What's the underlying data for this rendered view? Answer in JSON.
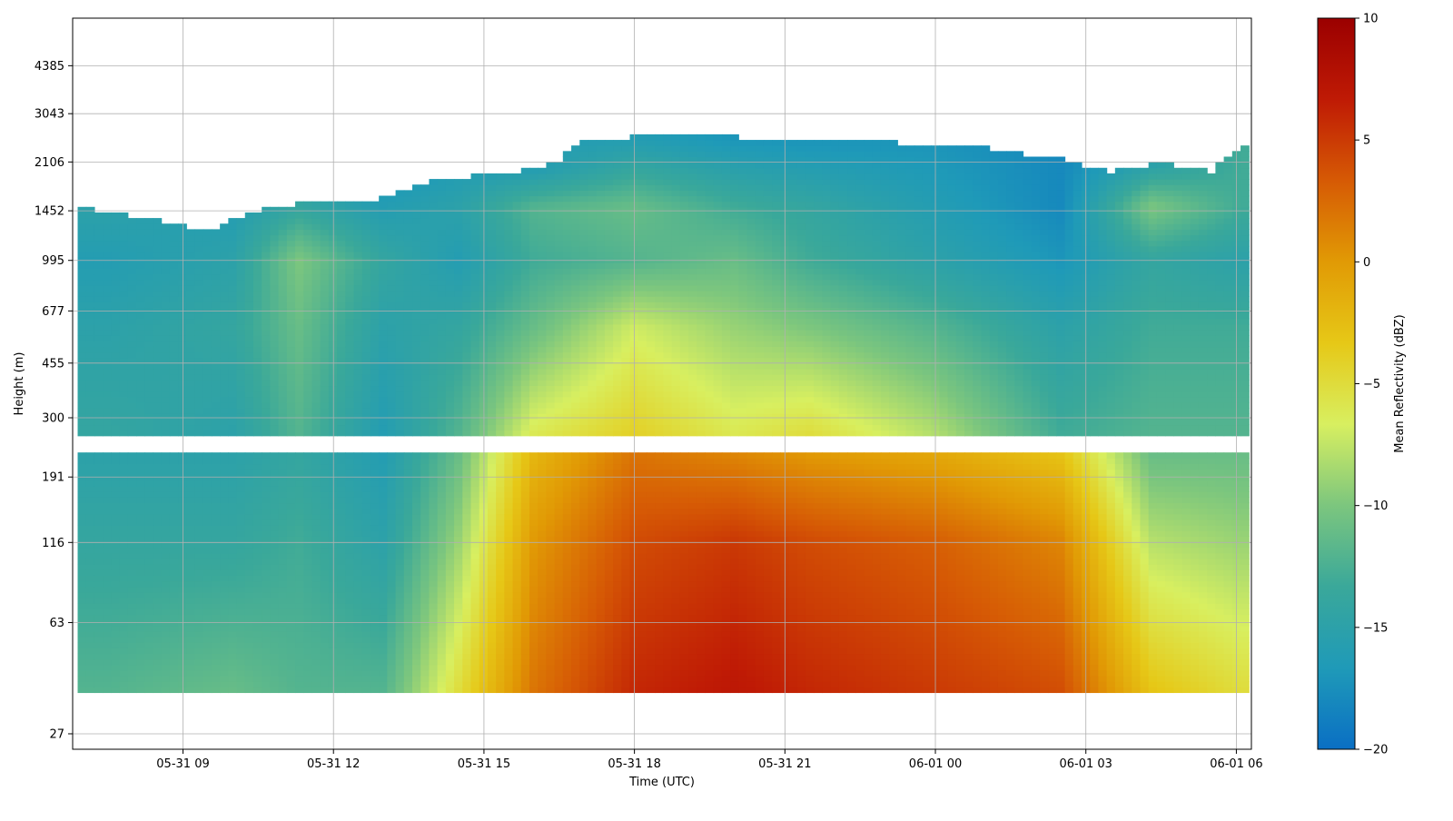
{
  "chart_data": {
    "type": "heatmap",
    "xlabel": "Time (UTC)",
    "ylabel": "Height (m)",
    "colorbar_label": "Mean Reflectivity (dBZ)",
    "colormap": [
      "#0a6fc4",
      "#1f9ab8",
      "#3aa89a",
      "#7cc67e",
      "#d8ef60",
      "#e6c817",
      "#e19a05",
      "#d65a05",
      "#bf1a05",
      "#9b0000"
    ],
    "grid": true,
    "x_ticks": [
      "05-31 09",
      "05-31 12",
      "05-31 15",
      "05-31 18",
      "05-31 21",
      "06-01 00",
      "06-01 03",
      "06-01 06"
    ],
    "x_tick_hours": [
      9,
      12,
      15,
      18,
      21,
      24,
      27,
      30
    ],
    "xlim_hours": [
      6.8,
      30.3
    ],
    "y_ticks": [
      "27",
      "63",
      "116",
      "191",
      "300",
      "455",
      "677",
      "995",
      "1452",
      "2106",
      "3043",
      "4385"
    ],
    "y_tick_values": [
      27,
      63,
      116,
      191,
      300,
      455,
      677,
      995,
      1452,
      2106,
      3043,
      4385
    ],
    "ylim_m": [
      24,
      6300
    ],
    "colorbar_ticks": [
      "−20",
      "−15",
      "−10",
      "−5",
      "0",
      "5",
      "10"
    ],
    "colorbar_tick_values": [
      -20,
      -15,
      -10,
      -5,
      0,
      5,
      10
    ],
    "clim": [
      -20,
      10
    ],
    "data_gap_m": [
      230,
      262
    ],
    "echo_bottom_m": 37,
    "echo_top_m": [
      [
        6.9,
        1500
      ],
      [
        8.0,
        1400
      ],
      [
        9.5,
        1250
      ],
      [
        10.5,
        1450
      ],
      [
        11.5,
        1550
      ],
      [
        13.0,
        1600
      ],
      [
        14.0,
        1850
      ],
      [
        15.0,
        1900
      ],
      [
        16.0,
        2000
      ],
      [
        16.5,
        2150
      ],
      [
        17.0,
        2500
      ],
      [
        18.0,
        2550
      ],
      [
        20.0,
        2550
      ],
      [
        21.5,
        2450
      ],
      [
        23.0,
        2450
      ],
      [
        25.0,
        2350
      ],
      [
        26.5,
        2150
      ],
      [
        27.5,
        1950
      ],
      [
        28.5,
        2100
      ],
      [
        29.5,
        1950
      ],
      [
        30.2,
        2450
      ]
    ],
    "reflectivity_field": [
      {
        "t": 7.5,
        "profile": [
          [
            37,
            -12
          ],
          [
            120,
            -14
          ],
          [
            230,
            -15
          ],
          [
            262,
            -14
          ],
          [
            600,
            -15
          ],
          [
            1000,
            -16
          ],
          [
            1500,
            -15
          ]
        ]
      },
      {
        "t": 10.0,
        "profile": [
          [
            37,
            -11
          ],
          [
            120,
            -14
          ],
          [
            230,
            -15
          ],
          [
            262,
            -15
          ],
          [
            600,
            -14
          ],
          [
            1000,
            -15
          ],
          [
            1500,
            -16
          ]
        ]
      },
      {
        "t": 11.3,
        "profile": [
          [
            37,
            -12
          ],
          [
            120,
            -13
          ],
          [
            230,
            -14
          ],
          [
            262,
            -12
          ],
          [
            600,
            -11
          ],
          [
            1000,
            -10
          ],
          [
            1500,
            -14
          ]
        ]
      },
      {
        "t": 13.0,
        "profile": [
          [
            37,
            -12
          ],
          [
            120,
            -15
          ],
          [
            230,
            -16
          ],
          [
            262,
            -16
          ],
          [
            600,
            -15
          ],
          [
            1000,
            -14
          ],
          [
            1500,
            -16
          ],
          [
            1850,
            -17
          ]
        ]
      },
      {
        "t": 14.5,
        "profile": [
          [
            37,
            -5
          ],
          [
            120,
            -9
          ],
          [
            230,
            -11
          ],
          [
            262,
            -12
          ],
          [
            600,
            -14
          ],
          [
            1000,
            -16
          ],
          [
            1500,
            -15
          ],
          [
            1900,
            -16
          ]
        ]
      },
      {
        "t": 16.0,
        "profile": [
          [
            37,
            2
          ],
          [
            120,
            0
          ],
          [
            230,
            -2
          ],
          [
            262,
            -6
          ],
          [
            600,
            -11
          ],
          [
            1000,
            -13
          ],
          [
            1500,
            -12
          ],
          [
            2000,
            -16
          ]
        ]
      },
      {
        "t": 18.0,
        "profile": [
          [
            37,
            6
          ],
          [
            120,
            4
          ],
          [
            230,
            2
          ],
          [
            262,
            -4
          ],
          [
            600,
            -7
          ],
          [
            1000,
            -12
          ],
          [
            1500,
            -11
          ],
          [
            2500,
            -16
          ]
        ]
      },
      {
        "t": 20.0,
        "profile": [
          [
            37,
            7
          ],
          [
            120,
            5
          ],
          [
            230,
            1
          ],
          [
            262,
            -6
          ],
          [
            600,
            -9
          ],
          [
            1000,
            -11
          ],
          [
            1500,
            -13
          ],
          [
            2500,
            -17
          ]
        ]
      },
      {
        "t": 21.5,
        "profile": [
          [
            37,
            6
          ],
          [
            120,
            4
          ],
          [
            230,
            0
          ],
          [
            262,
            -5
          ],
          [
            600,
            -10
          ],
          [
            1000,
            -13
          ],
          [
            1500,
            -14
          ],
          [
            2400,
            -17
          ]
        ]
      },
      {
        "t": 24.0,
        "profile": [
          [
            37,
            5
          ],
          [
            120,
            3
          ],
          [
            230,
            -1
          ],
          [
            262,
            -8
          ],
          [
            600,
            -12
          ],
          [
            1000,
            -15
          ],
          [
            1500,
            -16
          ],
          [
            2350,
            -17
          ]
        ]
      },
      {
        "t": 26.5,
        "profile": [
          [
            37,
            4
          ],
          [
            120,
            1
          ],
          [
            230,
            -3
          ],
          [
            262,
            -13
          ],
          [
            600,
            -15
          ],
          [
            1000,
            -17
          ],
          [
            1500,
            -18
          ],
          [
            2100,
            -18
          ]
        ]
      },
      {
        "t": 28.3,
        "profile": [
          [
            37,
            -3
          ],
          [
            120,
            -8
          ],
          [
            230,
            -11
          ],
          [
            262,
            -12
          ],
          [
            600,
            -13
          ],
          [
            1000,
            -14
          ],
          [
            1500,
            -10
          ],
          [
            2050,
            -15
          ]
        ]
      },
      {
        "t": 30.1,
        "profile": [
          [
            37,
            -5
          ],
          [
            120,
            -9
          ],
          [
            230,
            -11
          ],
          [
            262,
            -12
          ],
          [
            600,
            -13
          ],
          [
            1000,
            -15
          ],
          [
            1500,
            -13
          ],
          [
            2400,
            -13
          ]
        ]
      }
    ]
  }
}
